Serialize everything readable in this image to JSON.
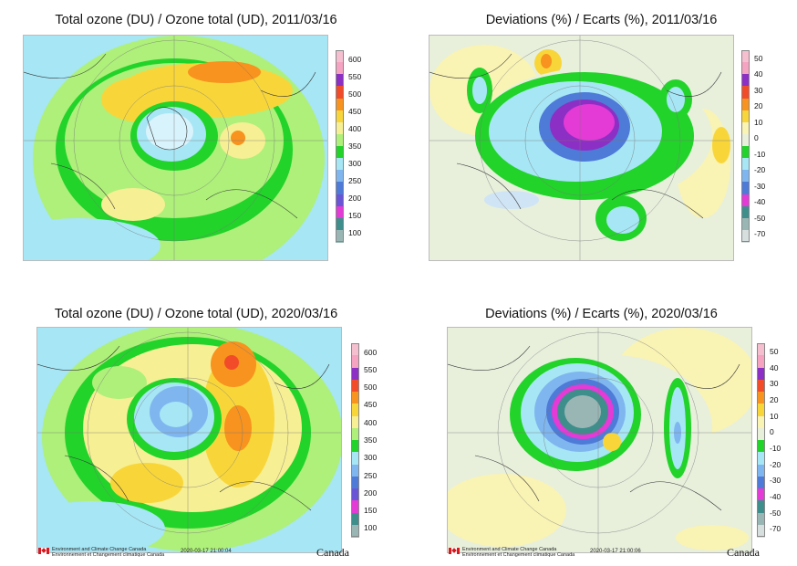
{
  "panels": [
    {
      "id": "p1",
      "title": "Total ozone (DU) / Ozone total (UD), 2011/03/16",
      "variable": "total-ozone",
      "scale": "ozone",
      "footer": false
    },
    {
      "id": "p2",
      "title": "Deviations (%) / Ecarts (%), 2011/03/16",
      "variable": "deviation",
      "scale": "dev",
      "footer": false
    },
    {
      "id": "p3",
      "title": "Total ozone (DU) / Ozone total (UD), 2020/03/16",
      "variable": "total-ozone",
      "scale": "ozone",
      "footer": true,
      "timestamp": "2020-03-17 21:00:04"
    },
    {
      "id": "p4",
      "title": "Deviations (%) / Ecarts (%), 2020/03/16",
      "variable": "deviation",
      "scale": "dev",
      "footer": true,
      "timestamp": "2020-03-17 21:00:06"
    }
  ],
  "scales": {
    "ozone": {
      "labels": [
        "600",
        "550",
        "500",
        "450",
        "400",
        "350",
        "300",
        "250",
        "200",
        "150",
        "100"
      ],
      "colors": [
        "#f6bfd0",
        "#f5a3c0",
        "#8c2fc4",
        "#f24b2a",
        "#f7931e",
        "#f8d63a",
        "#f7ef94",
        "#aef07a",
        "#22d32a",
        "#a6e6f5",
        "#7fb6ef",
        "#4e7ad8",
        "#6a55d6",
        "#e43ad6",
        "#3e8e8c",
        "#9ab6b4"
      ]
    },
    "dev": {
      "labels": [
        "50",
        "40",
        "30",
        "20",
        "10",
        "0",
        "-10",
        "-20",
        "-30",
        "-40",
        "-50",
        "-70"
      ],
      "colors": [
        "#f6bfd0",
        "#f5a3c0",
        "#8c2fc4",
        "#f24b2a",
        "#f7931e",
        "#f8d63a",
        "#f9f3b4",
        "#e8f0dc",
        "#22d32a",
        "#a6e6f5",
        "#7fb6ef",
        "#4e7ad8",
        "#e43ad6",
        "#3e8e8c",
        "#9ab6b4",
        "#d7dede"
      ]
    }
  },
  "footer": {
    "line1": "Environment and Climate Change Canada",
    "line2": "Environnement et Changement climatique Canada",
    "wordmark": "Canada"
  }
}
